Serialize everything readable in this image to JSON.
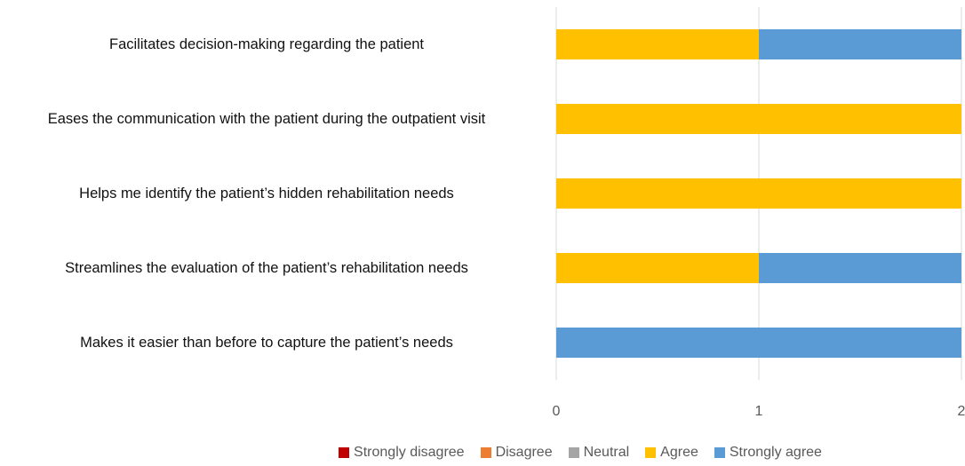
{
  "chart_data": {
    "type": "stacked_barh",
    "categories": [
      "Facilitates decision-making regarding the patient",
      "Eases the communication with the patient during the outpatient visit",
      "Helps me identify the patient’s hidden rehabilitation needs",
      "Streamlines the evaluation of the patient’s rehabilitation needs",
      "Makes it easier than before to capture the patient’s needs"
    ],
    "series": [
      {
        "name": "Strongly disagree",
        "color": "#c00000",
        "values": [
          0,
          0,
          0,
          0,
          0
        ]
      },
      {
        "name": "Disagree",
        "color": "#ed7d31",
        "values": [
          0,
          0,
          0,
          0,
          0
        ]
      },
      {
        "name": "Neutral",
        "color": "#a5a5a5",
        "values": [
          0,
          0,
          0,
          0,
          0
        ]
      },
      {
        "name": "Agree",
        "color": "#ffc000",
        "values": [
          1,
          2,
          2,
          1,
          0
        ]
      },
      {
        "name": "Strongly agree",
        "color": "#5b9bd5",
        "values": [
          1,
          0,
          0,
          1,
          2
        ]
      }
    ],
    "xlim": [
      0,
      2
    ],
    "xticks": [
      0,
      1,
      2
    ],
    "grid": true,
    "legend": "bottom"
  }
}
